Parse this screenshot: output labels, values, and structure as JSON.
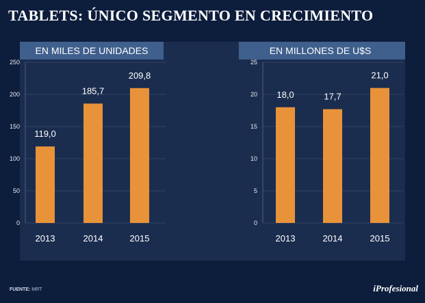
{
  "title": "TABLETS: ÚNICO SEGMENTO EN CRECIMIENTO",
  "colors": {
    "background": "#0d1d3c",
    "panel": "#1b2d4e",
    "header_band": "#3f5f8c",
    "bar": "#e8933a",
    "grid": "#2f4466"
  },
  "chart_data": [
    {
      "type": "bar",
      "title": "EN MILES DE UNIDADES",
      "categories": [
        "2013",
        "2014",
        "2015"
      ],
      "values": [
        119.0,
        185.7,
        209.8
      ],
      "value_labels": [
        "119,0",
        "185,7",
        "209,8"
      ],
      "ylim": [
        0,
        250
      ],
      "yticks": [
        0,
        50,
        100,
        150,
        200,
        250
      ],
      "xlabel": "",
      "ylabel": ""
    },
    {
      "type": "bar",
      "title": "EN MILLONES DE U$S",
      "categories": [
        "2013",
        "2014",
        "2015"
      ],
      "values": [
        18.0,
        17.7,
        21.0
      ],
      "value_labels": [
        "18,0",
        "17,7",
        "21,0"
      ],
      "ylim": [
        0,
        25
      ],
      "yticks": [
        0,
        5,
        10,
        15,
        20,
        25
      ],
      "xlabel": "",
      "ylabel": ""
    }
  ],
  "footer": {
    "source_label": "FUENTE:",
    "source_value": "MRT",
    "brand": "iProfesional"
  }
}
